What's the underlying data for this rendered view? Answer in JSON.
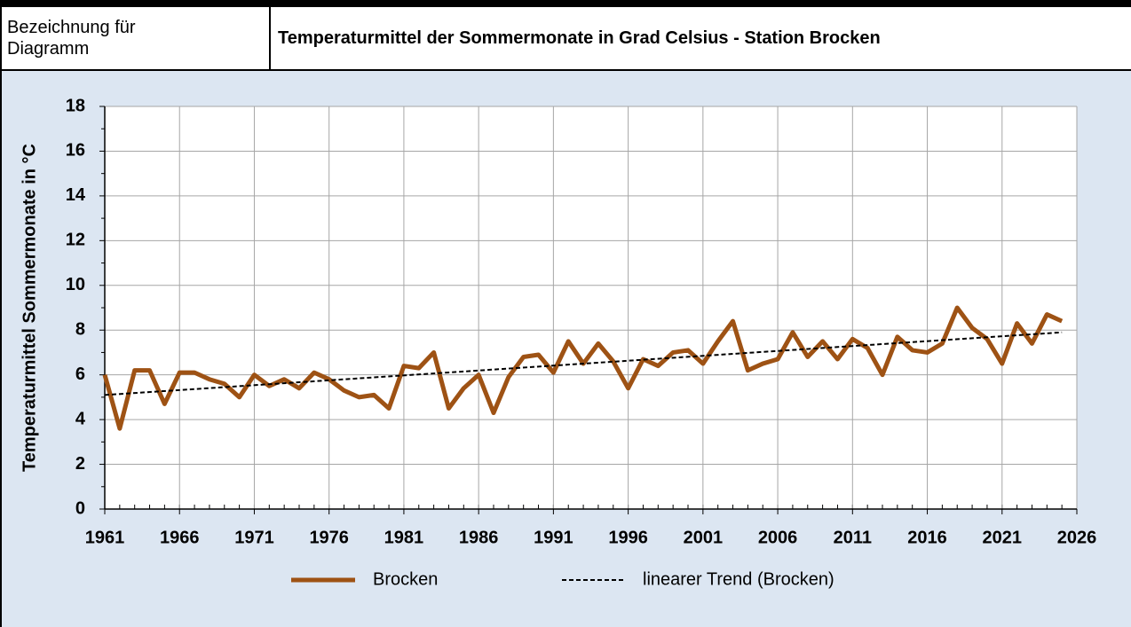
{
  "header": {
    "label": "Bezeichnung für Diagramm",
    "title": "Temperaturmittel der Sommermonate in Grad Celsius - Station Brocken"
  },
  "chart_data": {
    "type": "line",
    "ylabel": "Temperaturmittel Sommermonate in °C",
    "x": [
      1961,
      1962,
      1963,
      1964,
      1965,
      1966,
      1967,
      1968,
      1969,
      1970,
      1971,
      1972,
      1973,
      1974,
      1975,
      1976,
      1977,
      1978,
      1979,
      1980,
      1981,
      1982,
      1983,
      1984,
      1985,
      1986,
      1987,
      1988,
      1989,
      1990,
      1991,
      1992,
      1993,
      1994,
      1995,
      1996,
      1997,
      1998,
      1999,
      2000,
      2001,
      2002,
      2003,
      2004,
      2005,
      2006,
      2007,
      2008,
      2009,
      2010,
      2011,
      2012,
      2013,
      2014,
      2015,
      2016,
      2017,
      2018,
      2019,
      2020,
      2021,
      2022,
      2023,
      2024,
      2025
    ],
    "series": [
      {
        "name": "Brocken",
        "color": "#9e5214",
        "values": [
          6.0,
          3.6,
          6.2,
          6.2,
          4.7,
          6.1,
          6.1,
          5.8,
          5.6,
          5.0,
          6.0,
          5.5,
          5.8,
          5.4,
          6.1,
          5.8,
          5.3,
          5.0,
          5.1,
          4.5,
          6.4,
          6.3,
          7.0,
          4.5,
          5.4,
          6.0,
          4.3,
          5.9,
          6.8,
          6.9,
          6.1,
          7.5,
          6.5,
          7.4,
          6.6,
          5.4,
          6.7,
          6.4,
          7.0,
          7.1,
          6.5,
          7.5,
          8.4,
          6.2,
          6.5,
          6.7,
          7.9,
          6.8,
          7.5,
          6.7,
          7.6,
          7.2,
          6.0,
          7.7,
          7.1,
          7.0,
          7.4,
          9.0,
          8.1,
          7.6,
          6.5,
          8.3,
          7.4,
          8.7,
          8.4
        ]
      },
      {
        "name": "linearer Trend (Brocken)",
        "color": "#000000",
        "dashed": true,
        "x": [
          1961,
          2025
        ],
        "values": [
          5.1,
          7.9
        ]
      }
    ],
    "xlim": [
      1961,
      2026
    ],
    "xticks": [
      1961,
      1966,
      1971,
      1976,
      1981,
      1986,
      1991,
      1996,
      2001,
      2006,
      2011,
      2016,
      2021,
      2026
    ],
    "ylim": [
      0,
      18
    ],
    "yticks": [
      0,
      2,
      4,
      6,
      8,
      10,
      12,
      14,
      16,
      18
    ],
    "grid": true,
    "legend": "bottom"
  }
}
